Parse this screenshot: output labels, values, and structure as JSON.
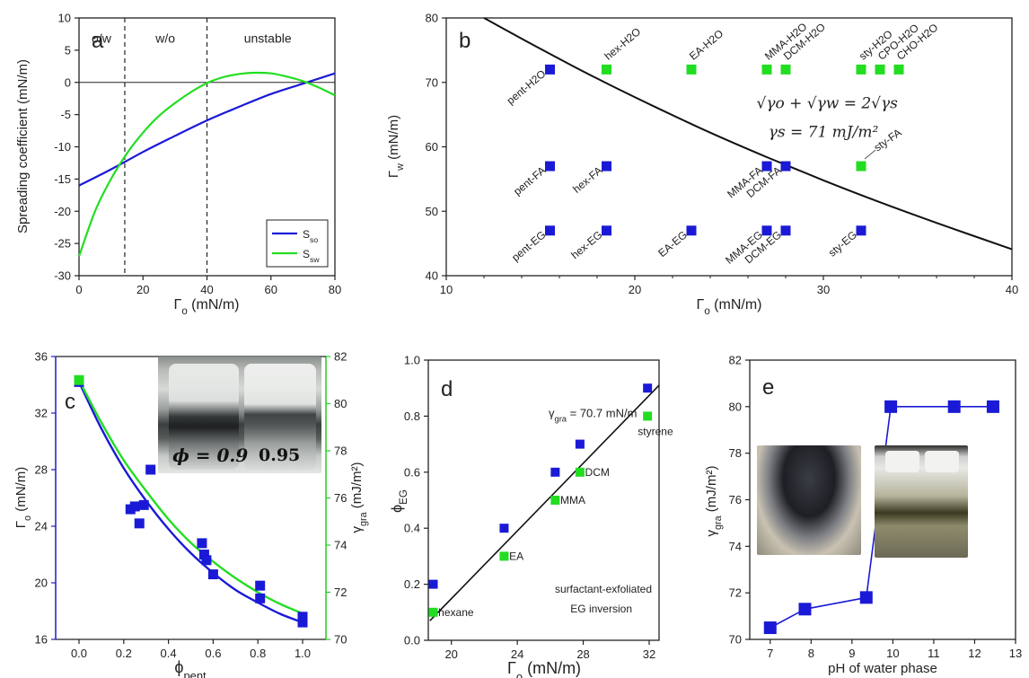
{
  "colors": {
    "blue": "#1a1ad6",
    "green": "#22dd22",
    "black": "#111111",
    "axis_blue": "#1d1dc8",
    "axis_green": "#22cc22"
  },
  "chart_data": [
    {
      "panel": "a",
      "type": "line",
      "xlabel": "Γo (mN/m)",
      "ylabel": "Spreading coefficient (mN/m)",
      "xlim": [
        0,
        80
      ],
      "ylim": [
        -30,
        10
      ],
      "xticks": [
        0,
        20,
        40,
        60,
        80
      ],
      "yticks": [
        -30,
        -25,
        -20,
        -15,
        -10,
        -5,
        0,
        5,
        10
      ],
      "grid": false,
      "legend_position": "bottom-right",
      "regions": [
        "o/w",
        "w/o",
        "unstable"
      ],
      "vlines": [
        14.3,
        40
      ],
      "hline": 0,
      "series": [
        {
          "name": "Sso",
          "color": "#1a1ad6",
          "x": [
            0,
            10,
            20,
            30,
            40,
            50,
            60,
            70,
            80
          ],
          "y": [
            -16.0,
            -13.5,
            -10.8,
            -8.3,
            -5.9,
            -3.8,
            -1.8,
            -0.2,
            1.4
          ]
        },
        {
          "name": "Ssw",
          "color": "#22dd22",
          "x": [
            0,
            5,
            10,
            15,
            20,
            25,
            30,
            35,
            40,
            45,
            50,
            55,
            60,
            65,
            70,
            75,
            80
          ],
          "y": [
            -27.0,
            -20.0,
            -15.0,
            -11.0,
            -7.8,
            -5.2,
            -3.2,
            -1.5,
            -0.1,
            0.8,
            1.3,
            1.5,
            1.4,
            0.9,
            0.2,
            -0.8,
            -2.0
          ]
        }
      ]
    },
    {
      "panel": "b",
      "type": "scatter",
      "xlabel": "Γo (mN/m)",
      "ylabel": "Γw (mN/m)",
      "xlim": [
        10,
        40
      ],
      "ylim": [
        40,
        80
      ],
      "xticks": [
        10,
        20,
        30,
        40
      ],
      "yticks": [
        40,
        50,
        60,
        70,
        80
      ],
      "grid": false,
      "equation_line1": "√γo + √γw = 2√γs",
      "equation_line2": "γs = 71 mJ/m²",
      "curve": {
        "x": [
          12,
          15,
          18,
          21,
          24,
          27,
          30,
          33,
          36,
          40
        ],
        "y": [
          80,
          75.2,
          70.6,
          66.3,
          62.2,
          58.4,
          54.8,
          51.4,
          48.2,
          44.1
        ]
      },
      "points": [
        {
          "label": "pent-H2O",
          "x": 15.5,
          "y": 72,
          "color": "blue"
        },
        {
          "label": "hex-H2O",
          "x": 18.5,
          "y": 72,
          "color": "green"
        },
        {
          "label": "EA-H2O",
          "x": 23,
          "y": 72,
          "color": "green"
        },
        {
          "label": "MMA-H2O",
          "x": 27,
          "y": 72,
          "color": "green"
        },
        {
          "label": "DCM-H2O",
          "x": 28,
          "y": 72,
          "color": "green"
        },
        {
          "label": "sty-H2O",
          "x": 32,
          "y": 72,
          "color": "green"
        },
        {
          "label": "CPO-H2O",
          "x": 33,
          "y": 72,
          "color": "green"
        },
        {
          "label": "CHO-H2O",
          "x": 34,
          "y": 72,
          "color": "green"
        },
        {
          "label": "pent-FA",
          "x": 15.5,
          "y": 57,
          "color": "blue"
        },
        {
          "label": "hex-FA",
          "x": 18.5,
          "y": 57,
          "color": "blue"
        },
        {
          "label": "MMA-FA",
          "x": 27,
          "y": 57,
          "color": "blue"
        },
        {
          "label": "DCM-FA",
          "x": 28,
          "y": 57,
          "color": "blue"
        },
        {
          "label": "sty-FA",
          "x": 32,
          "y": 57,
          "color": "green"
        },
        {
          "label": "pent-EG",
          "x": 15.5,
          "y": 47,
          "color": "blue"
        },
        {
          "label": "hex-EG",
          "x": 18.5,
          "y": 47,
          "color": "blue"
        },
        {
          "label": "EA-EG",
          "x": 23,
          "y": 47,
          "color": "blue"
        },
        {
          "label": "MMA-EG",
          "x": 27,
          "y": 47,
          "color": "blue"
        },
        {
          "label": "DCM-EG",
          "x": 28,
          "y": 47,
          "color": "blue"
        },
        {
          "label": "sty-EG",
          "x": 32,
          "y": 47,
          "color": "blue"
        }
      ]
    },
    {
      "panel": "c",
      "type": "scatter",
      "xlabel": "ϕpent",
      "ylabel_left": "Γo (mN/m)",
      "ylabel_right": "γgra (mJ/m²)",
      "xlim": [
        0.0,
        1.0
      ],
      "ylim_left": [
        16,
        36
      ],
      "ylim_right": [
        70,
        82
      ],
      "xticks": [
        0.0,
        0.2,
        0.4,
        0.6,
        0.8,
        1.0
      ],
      "yticks_left": [
        16,
        20,
        24,
        28,
        32,
        36
      ],
      "yticks_right": [
        70,
        72,
        74,
        76,
        78,
        80,
        82
      ],
      "inset_labels": [
        "ϕ = 0.9",
        "0.95"
      ],
      "series": [
        {
          "name": "Γo",
          "axis": "left",
          "color": "blue",
          "x": [
            0.0,
            0.23,
            0.25,
            0.27,
            0.29,
            0.32,
            0.55,
            0.56,
            0.57,
            0.6,
            0.81,
            0.81,
            1.0,
            1.0
          ],
          "y": [
            34.2,
            25.2,
            25.4,
            24.2,
            25.5,
            28.0,
            22.8,
            22.0,
            21.6,
            20.6,
            19.8,
            18.9,
            17.6,
            17.2
          ]
        },
        {
          "name": "γgra",
          "axis": "right",
          "color": "green",
          "x": [
            0.0
          ],
          "y": [
            81.0
          ]
        }
      ],
      "fits": [
        {
          "axis": "left",
          "color": "blue",
          "x": [
            0.0,
            0.1,
            0.2,
            0.3,
            0.4,
            0.5,
            0.6,
            0.7,
            0.8,
            0.9,
            1.0
          ],
          "y": [
            34.2,
            30.9,
            28.1,
            25.8,
            23.8,
            22.1,
            20.7,
            19.5,
            18.6,
            17.8,
            17.2
          ]
        },
        {
          "axis": "right",
          "color": "green",
          "x": [
            0.0,
            0.1,
            0.2,
            0.3,
            0.4,
            0.5,
            0.6,
            0.7,
            0.8,
            0.9,
            1.0
          ],
          "y": [
            81.0,
            79.2,
            77.6,
            76.3,
            75.1,
            74.1,
            73.3,
            72.6,
            72.0,
            71.5,
            71.1
          ]
        }
      ]
    },
    {
      "panel": "d",
      "type": "scatter",
      "xlabel": "Γo (mN/m)",
      "ylabel": "ϕEG",
      "xlim": [
        18.6,
        32.6
      ],
      "ylim": [
        0.0,
        1.0
      ],
      "xticks": [
        20,
        24,
        28,
        32
      ],
      "yticks": [
        0.0,
        0.2,
        0.4,
        0.6,
        0.8,
        1.0
      ],
      "annotation": "γgra = 70.7 mN/m",
      "note_line1": "surfactant-exfoliated",
      "note_line2": "EG inversion",
      "fit": {
        "x": [
          18.7,
          32.6
        ],
        "y": [
          0.07,
          0.91
        ]
      },
      "series": [
        {
          "name": "blue",
          "color": "blue",
          "x": [
            18.9,
            23.2,
            26.3,
            27.8,
            31.9
          ],
          "y": [
            0.2,
            0.4,
            0.6,
            0.7,
            0.9
          ]
        },
        {
          "name": "green",
          "color": "green",
          "x": [
            18.9,
            23.2,
            26.3,
            27.8,
            31.9
          ],
          "y": [
            0.1,
            0.3,
            0.5,
            0.6,
            0.8
          ]
        }
      ],
      "labels": [
        {
          "text": "hexane",
          "x": 19.1,
          "y": 0.1
        },
        {
          "text": "EA",
          "x": 23.4,
          "y": 0.3
        },
        {
          "text": "MMA",
          "x": 26.5,
          "y": 0.5
        },
        {
          "text": "DCM",
          "x": 28.0,
          "y": 0.6
        },
        {
          "text": "styrene",
          "x": 31.2,
          "y": 0.745
        }
      ]
    },
    {
      "panel": "e",
      "type": "line",
      "xlabel": "pH of water phase",
      "ylabel": "γgra (mJ/m²)",
      "xlim": [
        6.5,
        13
      ],
      "ylim": [
        70,
        82
      ],
      "xticks": [
        7,
        8,
        9,
        10,
        11,
        12,
        13
      ],
      "yticks": [
        70,
        72,
        74,
        76,
        78,
        80,
        82
      ],
      "series": [
        {
          "name": "γgra",
          "color": "blue",
          "x": [
            7.0,
            7.85,
            9.35,
            9.95,
            11.5,
            12.45
          ],
          "y": [
            70.5,
            71.3,
            71.8,
            80.0,
            80.0,
            80.0
          ]
        }
      ]
    }
  ],
  "panel_letters": {
    "a": "a",
    "b": "b",
    "c": "c",
    "d": "d",
    "e": "e"
  },
  "text": {
    "a_xlabel_sub": "o",
    "b_xlabel_sub": "o",
    "b_ylabel_sub": "w",
    "c_xlabel_sub": "pent",
    "c_left_sub": "o",
    "c_right_sub": "gra",
    "d_ylabel_sub": "EG",
    "d_xlabel_sub": "o",
    "d_annotation_sub": "gra",
    "e_ylabel_sub": "gra",
    "legend_so": "S",
    "legend_so_sub": "so",
    "legend_sw": "S",
    "legend_sw_sub": "sw"
  }
}
